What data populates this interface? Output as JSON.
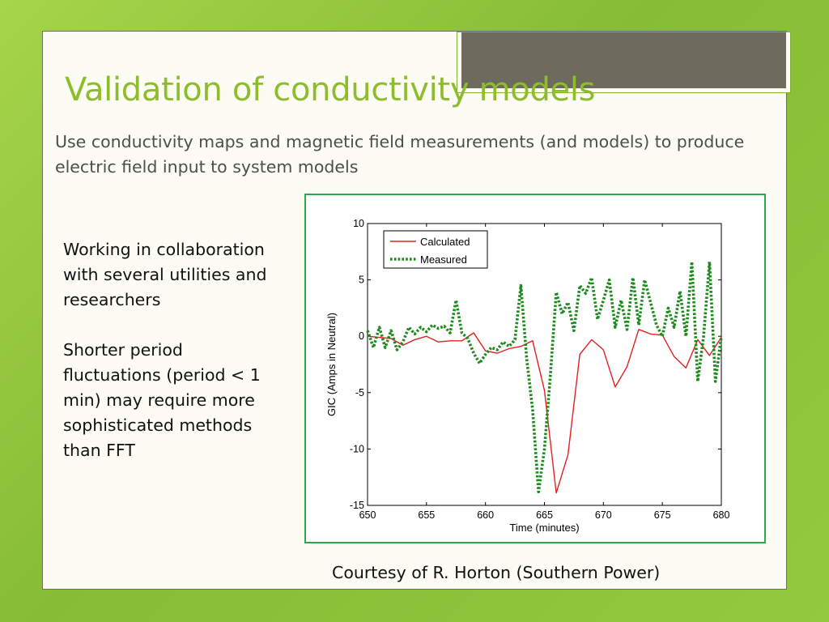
{
  "slide": {
    "title": "Validation of conductivity models",
    "subtitle": "Use conductivity maps and magnetic field measurements (and models) to produce electric field input to system models",
    "bullets": [
      "Working in collaboration with several utilities and researchers",
      "Shorter period fluctuations (period < 1 min) may require more sophisticated methods than FFT"
    ],
    "credit": "Courtesy of R. Horton (Southern Power)",
    "colors": {
      "accent": "#8dbd2a",
      "frame": "#2aaa4a",
      "background": "#8fc23a"
    }
  },
  "chart_data": {
    "type": "line",
    "xlabel": "Time (minutes)",
    "ylabel": "GIC (Amps in Neutral)",
    "xlim": [
      650,
      680
    ],
    "ylim": [
      -15,
      10
    ],
    "xticks": [
      650,
      655,
      660,
      665,
      670,
      675,
      680
    ],
    "yticks": [
      10,
      5,
      0,
      -5,
      -10,
      -15
    ],
    "legend_position": "top-left",
    "grid": false,
    "series": [
      {
        "name": "Calculated",
        "color": "#e02020",
        "style": "solid",
        "x": [
          650,
          651,
          652,
          653,
          654,
          655,
          656,
          657,
          658,
          659,
          660,
          661,
          662,
          663,
          664,
          665,
          666,
          667,
          668,
          669,
          670,
          671,
          672,
          673,
          674,
          675,
          676,
          677,
          678,
          679,
          680
        ],
        "y": [
          0,
          -0.1,
          -0.2,
          -0.8,
          -0.3,
          0.0,
          -0.5,
          -0.4,
          -0.4,
          0.3,
          -1.3,
          -1.5,
          -1.1,
          -0.9,
          -0.4,
          -4.8,
          -13.9,
          -10.5,
          -1.6,
          -0.3,
          -1.2,
          -4.5,
          -2.7,
          0.6,
          0.2,
          0.1,
          -1.8,
          -2.8,
          -0.3,
          -1.7,
          -0.1
        ]
      },
      {
        "name": "Measured",
        "color": "#1c8a1c",
        "style": "dotted",
        "x": [
          650,
          650.5,
          651,
          651.5,
          652,
          652.5,
          653,
          653.5,
          654,
          654.5,
          655,
          655.5,
          656,
          656.5,
          657,
          657.5,
          658,
          658.5,
          659,
          659.5,
          660,
          660.5,
          661,
          661.5,
          662,
          662.5,
          663,
          663.5,
          664,
          664.5,
          665,
          665.5,
          666,
          666.5,
          667,
          667.5,
          668,
          668.5,
          669,
          669.5,
          670,
          670.5,
          671,
          671.5,
          672,
          672.5,
          673,
          673.5,
          674,
          674.5,
          675,
          675.5,
          676,
          676.5,
          677,
          677.5,
          678,
          678.5,
          679,
          679.5,
          680
        ],
        "y": [
          0.5,
          -1.0,
          0.8,
          -1.0,
          0.5,
          -1.2,
          -0.5,
          0.8,
          0.2,
          0.8,
          0.4,
          1.0,
          0.7,
          0.9,
          0.3,
          3.2,
          0.3,
          -0.2,
          -1.5,
          -2.4,
          -1.6,
          -1.0,
          -1.2,
          -0.5,
          -0.9,
          -0.3,
          4.5,
          -2.0,
          -6.5,
          -13.8,
          -10.0,
          -3.5,
          3.9,
          2.0,
          3.0,
          0.5,
          4.5,
          3.8,
          5.2,
          1.5,
          3.2,
          5.0,
          0.8,
          3.2,
          0.6,
          5.2,
          1.0,
          5.0,
          3.0,
          1.0,
          0.0,
          2.5,
          0.8,
          4.0,
          0.0,
          6.6,
          -4.0,
          0.0,
          6.6,
          -4.0,
          0.0
        ]
      }
    ]
  }
}
